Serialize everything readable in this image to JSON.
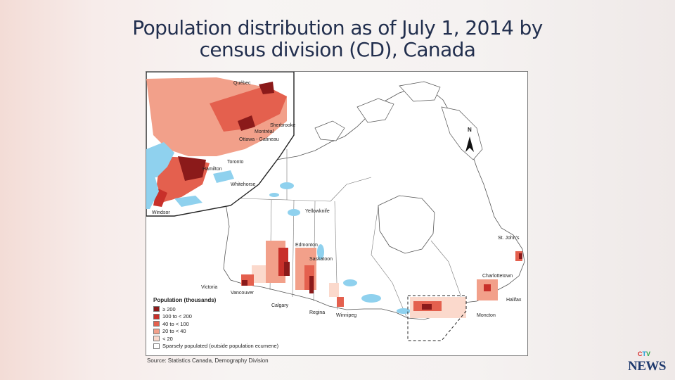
{
  "title": {
    "line1": "Population distribution as of July 1, 2014 by",
    "line2": "census division (CD), Canada"
  },
  "map": {
    "north_label": "N",
    "cities": {
      "quebec": "Québec",
      "sherbrooke": "Sherbrooke",
      "montreal": "Montréal",
      "ottawa": "Ottawa - Gatineau",
      "toronto": "Toronto",
      "hamilton": "Hamilton",
      "windsor": "Windsor",
      "whitehorse": "Whitehorse",
      "yellowknife": "Yellowknife",
      "stjohns": "St. John's",
      "edmonton": "Edmonton",
      "saskatoon": "Saskatoon",
      "charlottetown": "Charlottetown",
      "victoria": "Victoria",
      "vancouver": "Vancouver",
      "halifax": "Halifax",
      "calgary": "Calgary",
      "regina": "Regina",
      "winnipeg": "Winnipeg",
      "moncton": "Moncton"
    }
  },
  "legend": {
    "title": "Population (thousands)",
    "items": [
      {
        "label": "≥ 200",
        "color": "#8b1a1a"
      },
      {
        "label": "100 to < 200",
        "color": "#c8302a"
      },
      {
        "label": "40 to < 100",
        "color": "#e4604e"
      },
      {
        "label": "20 to < 40",
        "color": "#f2a08a"
      },
      {
        "label": "< 20",
        "color": "#fbd9cc"
      },
      {
        "label": "Sparsely populated (outside population ecumene)",
        "color": "#ffffff"
      }
    ]
  },
  "source": "Source: Statistics Canada, Demography Division",
  "logo": {
    "ctv": "CTV",
    "news": "NEWS"
  }
}
